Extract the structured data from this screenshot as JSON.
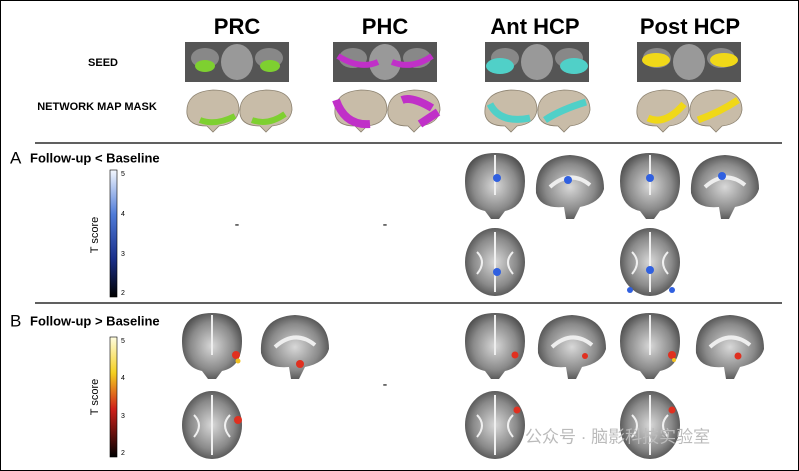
{
  "header": {
    "columns": [
      "PRC",
      "PHC",
      "Ant HCP",
      "Post HCP"
    ],
    "rows": [
      "SEED",
      "NETWORK MAP MASK"
    ]
  },
  "panels": [
    {
      "label": "A",
      "condition": "Follow-up < Baseline",
      "colorbar": {
        "title": "T score",
        "ticks": [
          5,
          4,
          3,
          2
        ]
      },
      "empty_marks": [
        "-",
        "-"
      ]
    },
    {
      "label": "B",
      "condition": "Follow-up > Baseline",
      "colorbar": {
        "title": "T score",
        "ticks": [
          5,
          4,
          3,
          2
        ]
      },
      "empty_marks": [
        "-"
      ]
    }
  ],
  "watermark": "公众号 · 脑影科技实验室"
}
